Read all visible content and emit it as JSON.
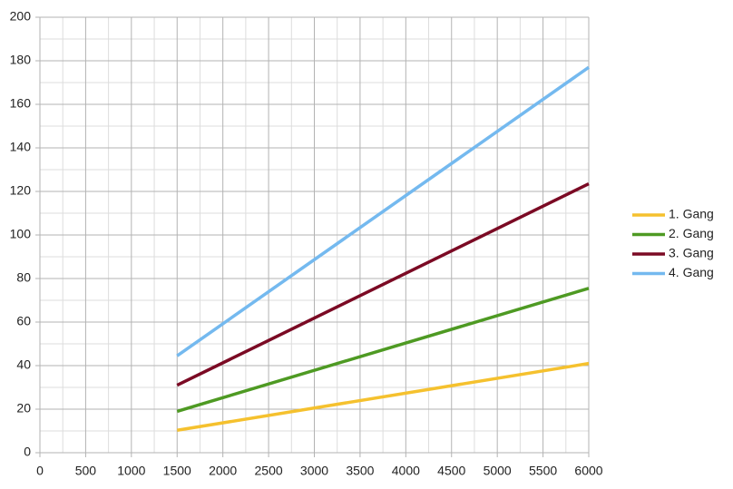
{
  "chart_data": {
    "type": "line",
    "x": [
      1500,
      6000
    ],
    "series": [
      {
        "name": "1. Gang",
        "color": "#f5c12e",
        "values": [
          10.3,
          41
        ]
      },
      {
        "name": "2. Gang",
        "color": "#4e9a23",
        "values": [
          19,
          75.5
        ]
      },
      {
        "name": "3. Gang",
        "color": "#7b0a24",
        "values": [
          31,
          123.5
        ]
      },
      {
        "name": "4. Gang",
        "color": "#74b9ef",
        "values": [
          44.5,
          177
        ]
      }
    ],
    "xlim": [
      0,
      6000
    ],
    "xticks": [
      0,
      500,
      1000,
      1500,
      2000,
      2500,
      3000,
      3500,
      4000,
      4500,
      5000,
      5500,
      6000
    ],
    "ylim": [
      0,
      200
    ],
    "yticks": [
      0,
      20,
      40,
      60,
      80,
      100,
      120,
      140,
      160,
      180,
      200
    ],
    "grid": true,
    "legend": "right"
  }
}
